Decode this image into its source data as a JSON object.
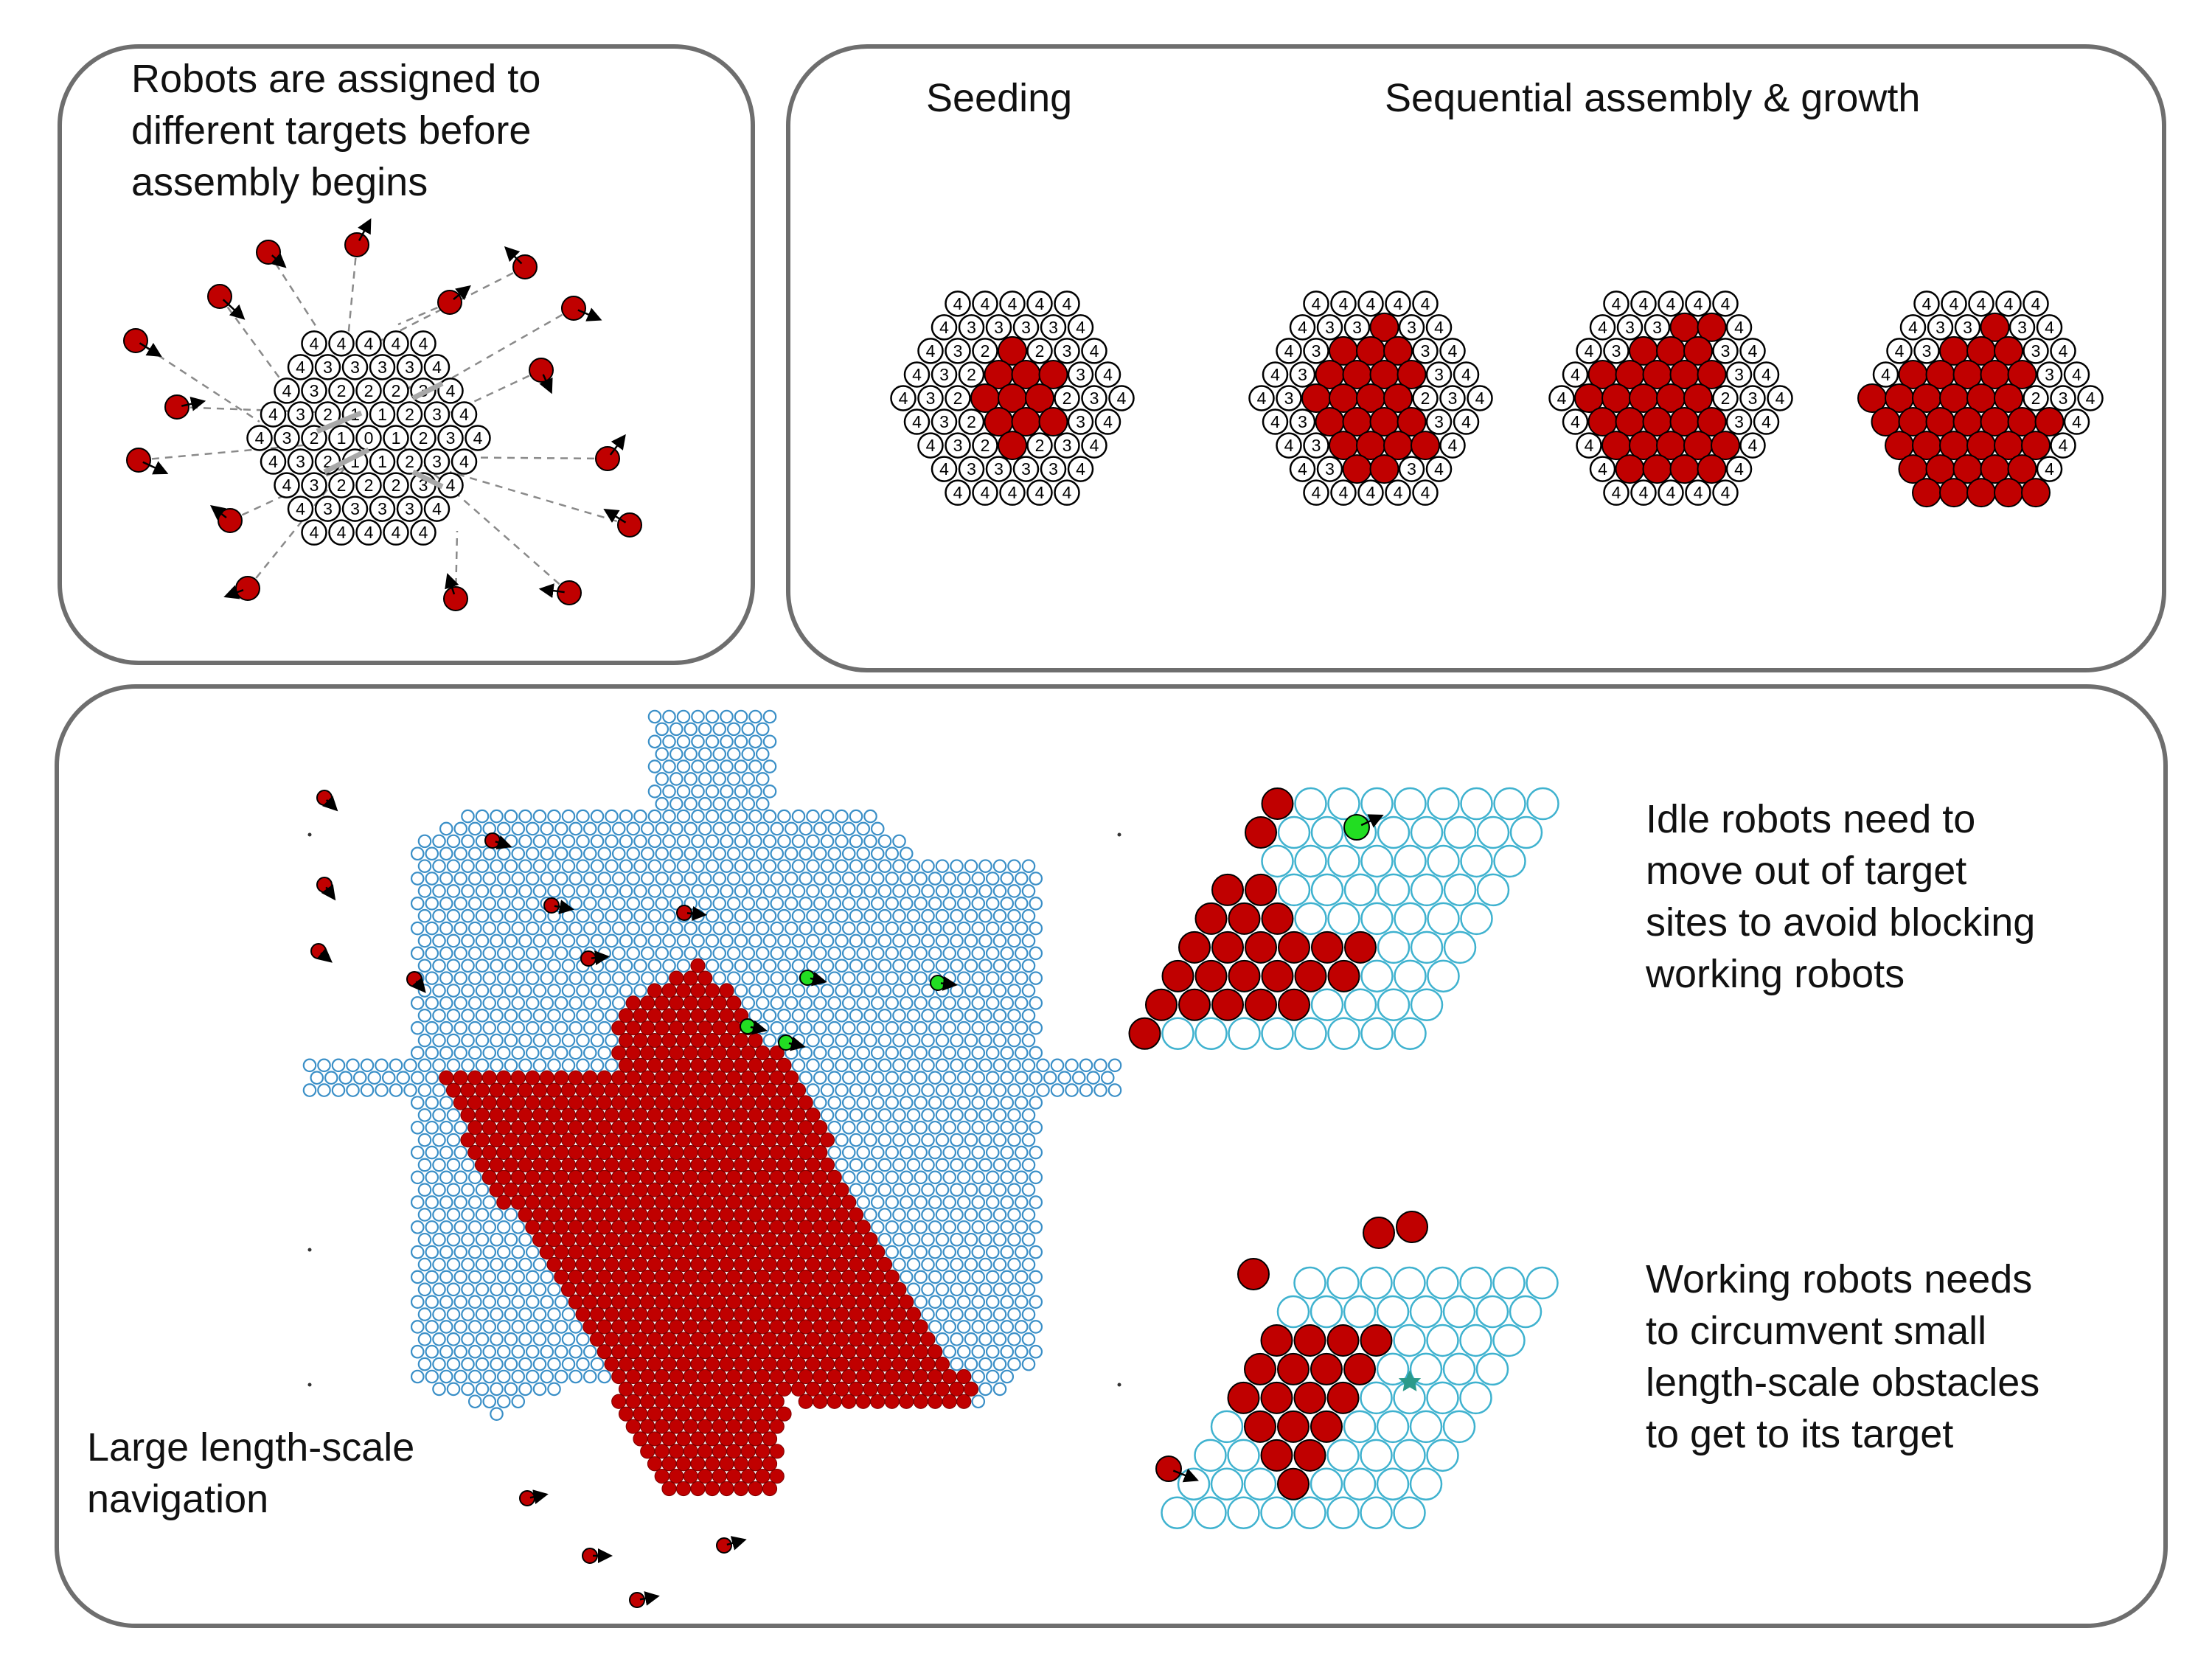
{
  "panel_a": {
    "caption": "Robots are assigned to\ndifferent targets before\nassembly begins",
    "grid_rows": [
      "44444",
      "433334",
      "4322234",
      "43211234",
      "432101234",
      "43211234",
      "4322234",
      "433334",
      "44444"
    ]
  },
  "panel_b": {
    "heading_seeding": "Seeding",
    "heading_growth": "Sequential assembly & growth",
    "stages": [
      {
        "filled": [
          "2,3",
          "3,3",
          "3,4",
          "3,5",
          "4,3",
          "4,4",
          "4,5",
          "5,3",
          "5,4",
          "5,5",
          "6,3"
        ]
      },
      {
        "filled": [
          "1,3",
          "2,2",
          "2,3",
          "2,4",
          "3,2",
          "3,3",
          "3,4",
          "3,5",
          "4,2",
          "4,3",
          "4,4",
          "4,5",
          "5,2",
          "5,3",
          "5,4",
          "5,5",
          "6,2",
          "6,3",
          "6,4",
          "6,5",
          "7,2",
          "7,3"
        ]
      },
      {
        "filled": [
          "1,3",
          "1,4",
          "2,2",
          "2,3",
          "2,4",
          "3,1",
          "3,2",
          "3,3",
          "3,4",
          "3,5",
          "4,1",
          "4,2",
          "4,3",
          "4,4",
          "4,5",
          "5,1",
          "5,2",
          "5,3",
          "5,4",
          "5,5",
          "6,1",
          "6,2",
          "6,3",
          "6,4",
          "6,5",
          "7,1",
          "7,2",
          "7,3",
          "7,4"
        ]
      },
      {
        "filled": [
          "1,3",
          "2,2",
          "2,3",
          "2,4",
          "3,1",
          "3,2",
          "3,3",
          "3,4",
          "3,5",
          "4,0",
          "4,1",
          "4,2",
          "4,3",
          "4,4",
          "4,5",
          "5,0",
          "5,1",
          "5,2",
          "5,3",
          "5,4",
          "5,5",
          "5,6",
          "6,0",
          "6,1",
          "6,2",
          "6,3",
          "6,4",
          "6,5",
          "7,0",
          "7,1",
          "7,2",
          "7,3",
          "7,4",
          "8,0",
          "8,1",
          "8,2",
          "8,3",
          "8,4"
        ]
      }
    ]
  },
  "panel_c": {
    "caption_navigation": "Large length-scale\nnavigation",
    "caption_idle": "Idle robots need to\nmove out of target\nsites to avoid blocking\nworking robots",
    "caption_working": "Working robots needs\nto circumvent small\nlength-scale obstacles\nto get to its target"
  },
  "colors": {
    "robot_red": "#c00000",
    "site_blue": "#3a8fc7",
    "site_cyan": "#3fb2cf",
    "idle_green": "#22dd22",
    "star_teal": "#2a9a8a",
    "panel_border": "#6e6e6e"
  }
}
